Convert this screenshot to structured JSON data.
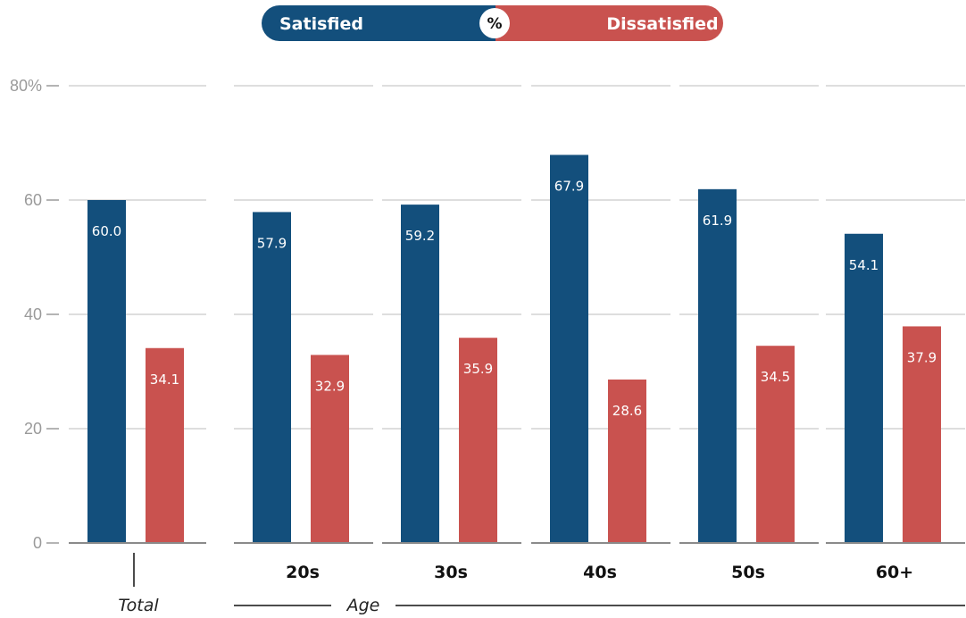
{
  "chart_data": {
    "type": "bar",
    "categories": [
      "Total",
      "20s",
      "30s",
      "40s",
      "50s",
      "60+"
    ],
    "series": [
      {
        "name": "Satisfied",
        "color": "#134f7c",
        "values": [
          60.0,
          57.9,
          59.2,
          67.9,
          61.9,
          54.1
        ]
      },
      {
        "name": "Dissatisfied",
        "color": "#c9524f",
        "values": [
          34.1,
          32.9,
          35.9,
          28.6,
          34.5,
          37.9
        ]
      }
    ],
    "value_labels": {
      "Satisfied": [
        "60.0",
        "57.9",
        "59.2",
        "67.9",
        "61.9",
        "54.1"
      ],
      "Dissatisfied": [
        "34.1",
        "32.9",
        "35.9",
        "28.6",
        "34.5",
        "37.9"
      ]
    },
    "category_labels": [
      "",
      "20s",
      "30s",
      "40s",
      "50s",
      "60+"
    ],
    "group_labels": {
      "total": "Total",
      "age": "Age"
    },
    "legend": {
      "left": "Satisfied",
      "center": "%",
      "right": "Dissatisfied",
      "placement": "top-center"
    },
    "yticks": [
      "80%",
      "60",
      "40",
      "20",
      "0"
    ],
    "ytick_values": [
      80,
      60,
      40,
      20,
      0
    ],
    "ylim": [
      0,
      80
    ],
    "grid": true,
    "title": "",
    "xlabel": "",
    "ylabel": ""
  }
}
